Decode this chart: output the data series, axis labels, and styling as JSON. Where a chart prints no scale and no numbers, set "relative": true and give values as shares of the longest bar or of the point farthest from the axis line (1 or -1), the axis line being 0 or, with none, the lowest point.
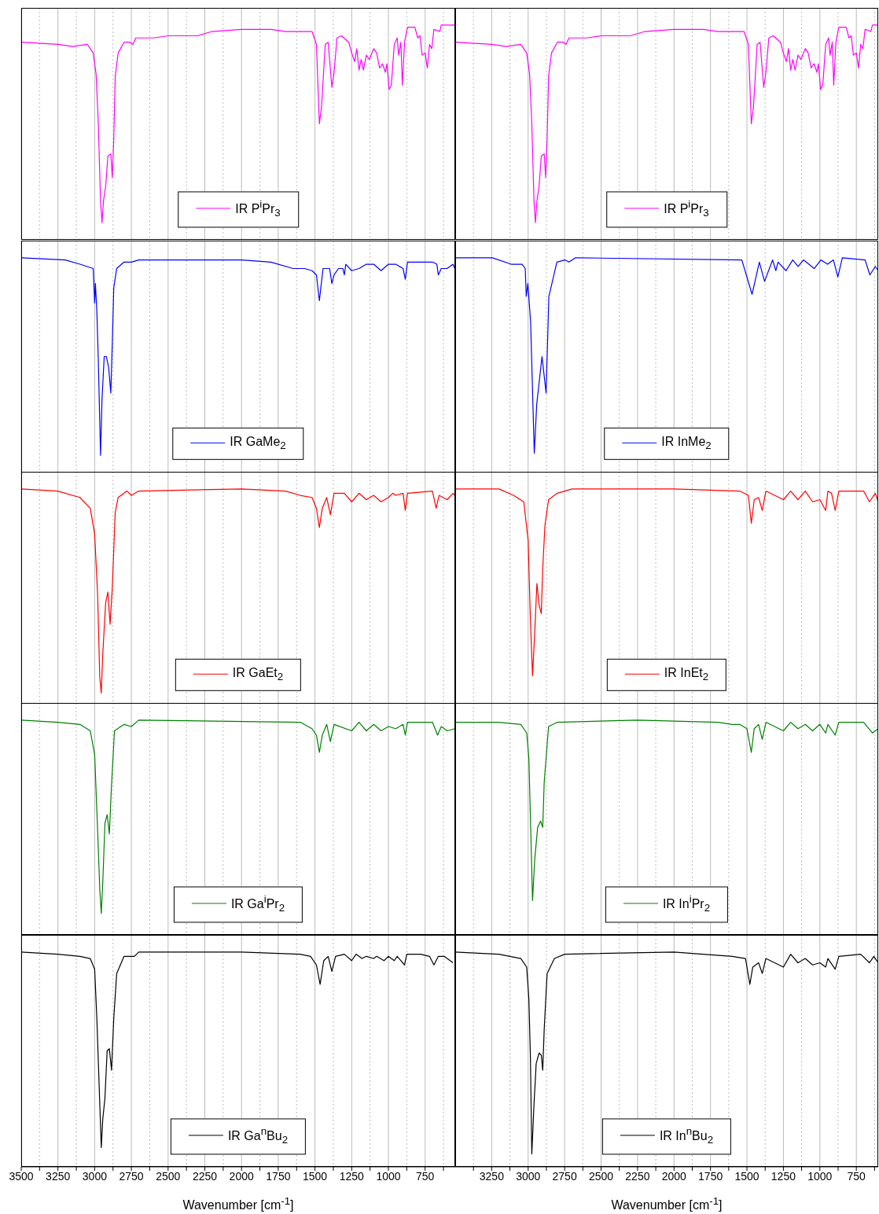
{
  "chart_data": [
    {
      "type": "line",
      "relative": true,
      "grid": "x",
      "legend": "bottom",
      "tick_labels": false,
      "xlim": [
        3500,
        545
      ],
      "xticks": [
        3500,
        {
          "value": 3375,
          "label": null
        },
        3250,
        {
          "value": 3125,
          "label": null
        },
        3000,
        {
          "value": 2875,
          "label": null
        },
        2750,
        {
          "value": 2625,
          "label": null
        },
        2500,
        {
          "value": 2375,
          "label": null
        },
        2250,
        {
          "value": 2125,
          "label": null
        },
        2000,
        {
          "value": 1875,
          "label": null
        },
        1750,
        {
          "value": 1625,
          "label": null
        },
        1500,
        {
          "value": 1375,
          "label": null
        },
        1250,
        {
          "value": 1125,
          "label": null
        },
        1000,
        {
          "value": 875,
          "label": null
        },
        750,
        {
          "value": 625,
          "label": null
        }
      ],
      "x": [
        3500,
        3250,
        3150,
        3050,
        3010,
        2990,
        2975,
        2960,
        2950,
        2940,
        2925,
        2910,
        2890,
        2880,
        2870,
        2860,
        2840,
        2800,
        2760,
        2740,
        2720,
        2600,
        2500,
        2300,
        2200,
        2000,
        1800,
        1700,
        1600,
        1520,
        1490,
        1470,
        1455,
        1430,
        1410,
        1385,
        1370,
        1350,
        1320,
        1270,
        1250,
        1230,
        1215,
        1200,
        1185,
        1170,
        1150,
        1130,
        1100,
        1080,
        1060,
        1040,
        1020,
        1010,
        995,
        980,
        960,
        940,
        930,
        915,
        905,
        890,
        870,
        820,
        800,
        785,
        770,
        750,
        735,
        720,
        705,
        690,
        650,
        640,
        560,
        545
      ],
      "series": [
        {
          "name": "IR P$^{i}$Pr$_{3}$",
          "color": "#ff00ff",
          "values": [
            0.92,
            0.91,
            0.9,
            0.91,
            0.87,
            0.77,
            0.54,
            0.18,
            0.08,
            0.18,
            0.25,
            0.39,
            0.4,
            0.29,
            0.47,
            0.76,
            0.87,
            0.92,
            0.92,
            0.91,
            0.94,
            0.94,
            0.95,
            0.95,
            0.97,
            0.98,
            0.98,
            0.97,
            0.97,
            0.97,
            0.91,
            0.54,
            0.62,
            0.91,
            0.92,
            0.71,
            0.78,
            0.94,
            0.95,
            0.92,
            0.87,
            0.83,
            0.89,
            0.79,
            0.84,
            0.79,
            0.86,
            0.84,
            0.89,
            0.87,
            0.8,
            0.82,
            0.78,
            0.82,
            0.7,
            0.72,
            0.91,
            0.94,
            0.86,
            0.92,
            0.72,
            0.92,
            0.99,
            0.99,
            0.94,
            0.95,
            0.86,
            0.87,
            0.8,
            0.91,
            0.89,
            0.98,
            0.97,
            1.0,
            1.0,
            1.0
          ]
        }
      ]
    },
    {
      "type": "line",
      "relative": true,
      "grid": "x",
      "legend": "bottom",
      "tick_labels": false,
      "xlim": [
        3500,
        600
      ],
      "xticks": [
        {
          "value": 3375,
          "label": null
        },
        3250,
        {
          "value": 3125,
          "label": null
        },
        3000,
        {
          "value": 2875,
          "label": null
        },
        2750,
        {
          "value": 2625,
          "label": null
        },
        2500,
        {
          "value": 2375,
          "label": null
        },
        2250,
        {
          "value": 2125,
          "label": null
        },
        2000,
        {
          "value": 1875,
          "label": null
        },
        1750,
        {
          "value": 1625,
          "label": null
        },
        1500,
        {
          "value": 1375,
          "label": null
        },
        1250,
        {
          "value": 1125,
          "label": null
        },
        1000,
        {
          "value": 875,
          "label": null
        },
        750,
        {
          "value": 625,
          "label": null
        }
      ],
      "x": [
        3500,
        3250,
        3150,
        3050,
        3010,
        2990,
        2975,
        2960,
        2950,
        2940,
        2925,
        2910,
        2890,
        2880,
        2870,
        2860,
        2840,
        2800,
        2760,
        2740,
        2720,
        2600,
        2500,
        2300,
        2200,
        2000,
        1800,
        1700,
        1600,
        1520,
        1490,
        1470,
        1455,
        1430,
        1410,
        1385,
        1370,
        1350,
        1320,
        1270,
        1250,
        1230,
        1215,
        1200,
        1185,
        1170,
        1150,
        1130,
        1100,
        1080,
        1060,
        1040,
        1020,
        1010,
        995,
        980,
        960,
        940,
        930,
        915,
        905,
        890,
        870,
        820,
        800,
        785,
        770,
        750,
        735,
        720,
        705,
        690,
        650,
        640,
        600
      ],
      "series": [
        {
          "name": "IR P$^{i}$Pr$_{3}$",
          "color": "#ff00ff",
          "values": [
            0.92,
            0.91,
            0.9,
            0.91,
            0.87,
            0.77,
            0.54,
            0.18,
            0.08,
            0.18,
            0.25,
            0.39,
            0.4,
            0.29,
            0.47,
            0.76,
            0.87,
            0.92,
            0.92,
            0.91,
            0.94,
            0.94,
            0.95,
            0.95,
            0.97,
            0.98,
            0.98,
            0.97,
            0.97,
            0.97,
            0.91,
            0.54,
            0.62,
            0.91,
            0.92,
            0.71,
            0.78,
            0.94,
            0.95,
            0.92,
            0.87,
            0.83,
            0.89,
            0.79,
            0.84,
            0.79,
            0.86,
            0.84,
            0.89,
            0.87,
            0.8,
            0.82,
            0.78,
            0.82,
            0.7,
            0.72,
            0.91,
            0.94,
            0.86,
            0.92,
            0.72,
            0.92,
            0.99,
            0.99,
            0.94,
            0.95,
            0.86,
            0.87,
            0.8,
            0.91,
            0.89,
            0.98,
            0.97,
            1.0,
            1.0
          ]
        }
      ]
    },
    {
      "type": "line",
      "relative": true,
      "grid": "x",
      "legend": "bottom",
      "tick_labels": false,
      "xlim": [
        3500,
        545
      ],
      "xticks": [
        3500,
        {
          "value": 3375,
          "label": null
        },
        3250,
        {
          "value": 3125,
          "label": null
        },
        3000,
        {
          "value": 2875,
          "label": null
        },
        2750,
        {
          "value": 2625,
          "label": null
        },
        2500,
        {
          "value": 2375,
          "label": null
        },
        2250,
        {
          "value": 2125,
          "label": null
        },
        2000,
        {
          "value": 1875,
          "label": null
        },
        1750,
        {
          "value": 1625,
          "label": null
        },
        1500,
        {
          "value": 1375,
          "label": null
        },
        1250,
        {
          "value": 1125,
          "label": null
        },
        1000,
        {
          "value": 875,
          "label": null
        },
        750,
        {
          "value": 625,
          "label": null
        }
      ],
      "x": [
        3500,
        3200,
        3100,
        3010,
        3000,
        2995,
        2985,
        2975,
        2960,
        2950,
        2935,
        2920,
        2905,
        2890,
        2880,
        2870,
        2850,
        2800,
        2750,
        2700,
        2500,
        2000,
        1800,
        1650,
        1570,
        1520,
        1490,
        1470,
        1460,
        1445,
        1400,
        1385,
        1370,
        1340,
        1310,
        1300,
        1290,
        1250,
        1200,
        1150,
        1100,
        1050,
        1000,
        950,
        900,
        885,
        870,
        750,
        700,
        670,
        660,
        640,
        600,
        560,
        548
      ],
      "series": [
        {
          "name": "IR GaMe$_{2}$",
          "color": "#0000ff",
          "values": [
            1.0,
            0.99,
            0.97,
            0.95,
            0.79,
            0.88,
            0.75,
            0.52,
            0.08,
            0.34,
            0.54,
            0.54,
            0.49,
            0.37,
            0.6,
            0.86,
            0.95,
            0.98,
            0.98,
            0.99,
            0.99,
            0.99,
            0.98,
            0.95,
            0.95,
            0.94,
            0.92,
            0.8,
            0.86,
            0.95,
            0.95,
            0.88,
            0.92,
            0.95,
            0.95,
            0.92,
            0.97,
            0.94,
            0.95,
            0.97,
            0.97,
            0.94,
            0.97,
            0.97,
            0.95,
            0.9,
            0.98,
            0.98,
            0.98,
            0.97,
            0.92,
            0.95,
            0.95,
            0.97,
            0.95
          ]
        }
      ]
    },
    {
      "type": "line",
      "relative": true,
      "grid": "x",
      "legend": "bottom",
      "tick_labels": false,
      "xlim": [
        3500,
        600
      ],
      "xticks": [
        {
          "value": 3375,
          "label": null
        },
        3250,
        {
          "value": 3125,
          "label": null
        },
        3000,
        {
          "value": 2875,
          "label": null
        },
        2750,
        {
          "value": 2625,
          "label": null
        },
        2500,
        {
          "value": 2375,
          "label": null
        },
        2250,
        {
          "value": 2125,
          "label": null
        },
        2000,
        {
          "value": 1875,
          "label": null
        },
        1750,
        {
          "value": 1625,
          "label": null
        },
        1500,
        {
          "value": 1375,
          "label": null
        },
        1250,
        {
          "value": 1125,
          "label": null
        },
        1000,
        {
          "value": 875,
          "label": null
        },
        750,
        {
          "value": 625,
          "label": null
        }
      ],
      "x": [
        3500,
        3245,
        3116,
        3042,
        3020,
        3013,
        3002,
        2983,
        2958,
        2941,
        2905,
        2877,
        2858,
        2803,
        2748,
        2720,
        2675,
        1535,
        1465,
        1415,
        1379,
        1324,
        1302,
        1287,
        1232,
        1186,
        1149,
        1112,
        1039,
        993,
        947,
        907,
        877,
        846,
        690,
        657,
        620,
        600
      ],
      "series": [
        {
          "name": "IR InMe$_{2}$",
          "color": "#0000ff",
          "values": [
            1.0,
            1.0,
            0.97,
            0.97,
            0.95,
            0.82,
            0.88,
            0.7,
            0.09,
            0.32,
            0.54,
            0.37,
            0.82,
            0.98,
            0.99,
            0.98,
            1.0,
            0.99,
            0.83,
            0.98,
            0.89,
            0.99,
            0.94,
            0.98,
            0.94,
            0.99,
            0.96,
            0.99,
            0.95,
            0.99,
            0.97,
            0.99,
            0.91,
            1.0,
            0.99,
            0.92,
            0.96,
            0.94
          ]
        }
      ]
    },
    {
      "type": "line",
      "relative": true,
      "grid": "x",
      "legend": "bottom",
      "tick_labels": false,
      "xlim": [
        3500,
        545
      ],
      "xticks": [
        3500,
        {
          "value": 3375,
          "label": null
        },
        3250,
        {
          "value": 3125,
          "label": null
        },
        3000,
        {
          "value": 2875,
          "label": null
        },
        2750,
        {
          "value": 2625,
          "label": null
        },
        2500,
        {
          "value": 2375,
          "label": null
        },
        2250,
        {
          "value": 2125,
          "label": null
        },
        2000,
        {
          "value": 1875,
          "label": null
        },
        1750,
        {
          "value": 1625,
          "label": null
        },
        1500,
        {
          "value": 1375,
          "label": null
        },
        1250,
        {
          "value": 1125,
          "label": null
        },
        1000,
        {
          "value": 875,
          "label": null
        },
        750,
        {
          "value": 625,
          "label": null
        }
      ],
      "x": [
        3500,
        3250,
        3100,
        3030,
        3000,
        2980,
        2965,
        2955,
        2945,
        2925,
        2910,
        2895,
        2880,
        2860,
        2840,
        2780,
        2750,
        2700,
        2000,
        1700,
        1600,
        1520,
        1490,
        1470,
        1450,
        1420,
        1395,
        1370,
        1300,
        1250,
        1200,
        1150,
        1100,
        1050,
        1000,
        970,
        950,
        900,
        885,
        870,
        700,
        675,
        655,
        600,
        560,
        548
      ],
      "series": [
        {
          "name": "IR GaEt$_{2}$",
          "color": "#ff0000",
          "values": [
            1.0,
            0.99,
            0.96,
            0.91,
            0.79,
            0.51,
            0.12,
            0.05,
            0.23,
            0.47,
            0.52,
            0.37,
            0.54,
            0.89,
            0.96,
            0.99,
            0.97,
            0.99,
            1.0,
            0.99,
            0.97,
            0.96,
            0.91,
            0.82,
            0.91,
            0.96,
            0.88,
            0.98,
            0.98,
            0.94,
            0.98,
            0.95,
            0.97,
            0.94,
            0.96,
            0.98,
            0.97,
            0.98,
            0.9,
            0.98,
            0.99,
            0.91,
            0.97,
            0.95,
            0.98,
            0.97
          ]
        }
      ]
    },
    {
      "type": "line",
      "relative": true,
      "grid": "x",
      "legend": "bottom",
      "tick_labels": false,
      "xlim": [
        3500,
        600
      ],
      "xticks": [
        {
          "value": 3375,
          "label": null
        },
        3250,
        {
          "value": 3125,
          "label": null
        },
        3000,
        {
          "value": 2875,
          "label": null
        },
        2750,
        {
          "value": 2625,
          "label": null
        },
        2500,
        {
          "value": 2375,
          "label": null
        },
        2250,
        {
          "value": 2125,
          "label": null
        },
        2000,
        {
          "value": 1875,
          "label": null
        },
        1750,
        {
          "value": 1625,
          "label": null
        },
        1500,
        {
          "value": 1375,
          "label": null
        },
        1250,
        {
          "value": 1125,
          "label": null
        },
        1000,
        {
          "value": 875,
          "label": null
        },
        750,
        {
          "value": 625,
          "label": null
        }
      ],
      "x": [
        3500,
        3200,
        3100,
        3030,
        3000,
        2985,
        2970,
        2955,
        2940,
        2925,
        2910,
        2900,
        2885,
        2860,
        2800,
        2700,
        2000,
        1550,
        1490,
        1470,
        1450,
        1420,
        1395,
        1370,
        1250,
        1200,
        1150,
        1100,
        1050,
        1000,
        960,
        945,
        920,
        895,
        870,
        700,
        660,
        620,
        600
      ],
      "series": [
        {
          "name": "IR InEt$_{2}$",
          "color": "#ff0000",
          "values": [
            1.0,
            1.0,
            0.97,
            0.94,
            0.76,
            0.4,
            0.13,
            0.33,
            0.56,
            0.46,
            0.42,
            0.63,
            0.83,
            0.95,
            0.98,
            1.0,
            1.0,
            0.99,
            0.97,
            0.84,
            0.95,
            0.96,
            0.9,
            0.99,
            0.95,
            0.99,
            0.95,
            0.99,
            0.94,
            0.95,
            0.9,
            0.99,
            0.98,
            0.9,
            0.99,
            0.99,
            0.94,
            0.98,
            0.94
          ]
        }
      ]
    },
    {
      "type": "line",
      "relative": true,
      "grid": "x",
      "legend": "bottom",
      "tick_labels": false,
      "xlim": [
        3500,
        545
      ],
      "xticks": [
        3500,
        {
          "value": 3375,
          "label": null
        },
        3250,
        {
          "value": 3125,
          "label": null
        },
        3000,
        {
          "value": 2875,
          "label": null
        },
        2750,
        {
          "value": 2625,
          "label": null
        },
        2500,
        {
          "value": 2375,
          "label": null
        },
        2250,
        {
          "value": 2125,
          "label": null
        },
        2000,
        {
          "value": 1875,
          "label": null
        },
        1750,
        {
          "value": 1625,
          "label": null
        },
        1500,
        {
          "value": 1375,
          "label": null
        },
        1250,
        {
          "value": 1125,
          "label": null
        },
        1000,
        {
          "value": 875,
          "label": null
        },
        750,
        {
          "value": 625,
          "label": null
        }
      ],
      "x": [
        3500,
        3250,
        3100,
        3030,
        3000,
        2980,
        2965,
        2955,
        2945,
        2930,
        2915,
        2900,
        2885,
        2865,
        2800,
        2750,
        2700,
        1600,
        1520,
        1490,
        1470,
        1450,
        1420,
        1395,
        1370,
        1250,
        1200,
        1150,
        1100,
        1050,
        1000,
        950,
        900,
        885,
        870,
        700,
        665,
        640,
        600,
        548
      ],
      "series": [
        {
          "name": "IR Ga$^{i}$Pr$_{2}$",
          "color": "#008000",
          "values": [
            1.0,
            0.99,
            0.98,
            0.95,
            0.84,
            0.49,
            0.21,
            0.1,
            0.24,
            0.52,
            0.56,
            0.47,
            0.7,
            0.95,
            0.98,
            0.97,
            1.0,
            0.99,
            0.96,
            0.93,
            0.85,
            0.93,
            0.98,
            0.9,
            0.98,
            0.95,
            0.99,
            0.95,
            0.98,
            0.95,
            0.97,
            0.96,
            0.98,
            0.93,
            0.99,
            0.99,
            0.93,
            0.97,
            0.95,
            0.96
          ]
        }
      ]
    },
    {
      "type": "line",
      "relative": true,
      "grid": "x",
      "legend": "bottom",
      "tick_labels": false,
      "xlim": [
        3500,
        600
      ],
      "xticks": [
        {
          "value": 3375,
          "label": null
        },
        3250,
        {
          "value": 3125,
          "label": null
        },
        3000,
        {
          "value": 2875,
          "label": null
        },
        2750,
        {
          "value": 2625,
          "label": null
        },
        2500,
        {
          "value": 2375,
          "label": null
        },
        2250,
        {
          "value": 2125,
          "label": null
        },
        2000,
        {
          "value": 1875,
          "label": null
        },
        1750,
        {
          "value": 1625,
          "label": null
        },
        1500,
        {
          "value": 1375,
          "label": null
        },
        1250,
        {
          "value": 1125,
          "label": null
        },
        1000,
        {
          "value": 875,
          "label": null
        },
        750,
        {
          "value": 625,
          "label": null
        }
      ],
      "x": [
        3500,
        3200,
        3050,
        3010,
        2995,
        2980,
        2970,
        2955,
        2935,
        2915,
        2900,
        2890,
        2860,
        2800,
        2250,
        1700,
        1600,
        1550,
        1500,
        1470,
        1450,
        1420,
        1395,
        1370,
        1250,
        1200,
        1150,
        1100,
        1050,
        1000,
        960,
        945,
        895,
        870,
        700,
        640,
        600
      ],
      "series": [
        {
          "name": "IR In$^{i}$Pr$_{2}$",
          "color": "#008000",
          "values": [
            0.99,
            0.99,
            0.98,
            0.94,
            0.82,
            0.43,
            0.16,
            0.35,
            0.5,
            0.53,
            0.5,
            0.71,
            0.97,
            0.99,
            1.0,
            0.99,
            0.98,
            0.98,
            0.96,
            0.85,
            0.96,
            0.98,
            0.91,
            0.99,
            0.95,
            0.99,
            0.96,
            0.98,
            0.95,
            0.98,
            0.94,
            0.98,
            0.93,
            0.99,
            0.99,
            0.94,
            0.96
          ]
        }
      ]
    },
    {
      "type": "line",
      "relative": true,
      "grid": "x",
      "legend": "bottom",
      "tick_labels": "x",
      "xlabel": "Wavenumber [cm$^{-1}$]",
      "xlim": [
        3500,
        545
      ],
      "xticks": [
        3500,
        {
          "value": 3375,
          "label": null
        },
        3250,
        {
          "value": 3125,
          "label": null
        },
        3000,
        {
          "value": 2875,
          "label": null
        },
        2750,
        {
          "value": 2625,
          "label": null
        },
        2500,
        {
          "value": 2375,
          "label": null
        },
        2250,
        {
          "value": 2125,
          "label": null
        },
        2000,
        {
          "value": 1875,
          "label": null
        },
        1750,
        {
          "value": 1625,
          "label": null
        },
        1500,
        {
          "value": 1375,
          "label": null
        },
        1250,
        {
          "value": 1125,
          "label": null
        },
        1000,
        {
          "value": 875,
          "label": null
        },
        750,
        {
          "value": 625,
          "label": null
        }
      ],
      "x": [
        3500,
        3250,
        3100,
        3030,
        3000,
        2985,
        2965,
        2955,
        2945,
        2930,
        2915,
        2900,
        2885,
        2870,
        2850,
        2800,
        2750,
        2730,
        2700,
        2000,
        1600,
        1530,
        1490,
        1465,
        1440,
        1410,
        1385,
        1360,
        1300,
        1250,
        1220,
        1180,
        1150,
        1100,
        1080,
        1030,
        1000,
        960,
        940,
        890,
        875,
        780,
        720,
        690,
        660,
        620,
        560
      ],
      "series": [
        {
          "name": "IR Ga$^{n}$Bu$_{2}$",
          "color": "#000000",
          "values": [
            1.0,
            0.99,
            0.98,
            0.97,
            0.92,
            0.69,
            0.29,
            0.09,
            0.22,
            0.32,
            0.54,
            0.55,
            0.45,
            0.69,
            0.9,
            0.98,
            0.98,
            0.98,
            1.0,
            1.0,
            0.99,
            0.98,
            0.94,
            0.85,
            0.96,
            0.98,
            0.91,
            0.98,
            0.99,
            0.96,
            0.99,
            0.97,
            0.98,
            0.97,
            0.98,
            0.96,
            0.98,
            0.96,
            0.98,
            0.94,
            0.99,
            0.99,
            0.98,
            0.94,
            0.98,
            0.98,
            0.95
          ]
        }
      ]
    },
    {
      "type": "line",
      "relative": true,
      "grid": "x",
      "legend": "bottom",
      "tick_labels": "x",
      "xlabel": "Wavenumber [cm$^{-1}$]",
      "xlim": [
        3500,
        600
      ],
      "xticks": [
        {
          "value": 3375,
          "label": null
        },
        3250,
        {
          "value": 3125,
          "label": null
        },
        3000,
        {
          "value": 2875,
          "label": null
        },
        2750,
        {
          "value": 2625,
          "label": null
        },
        2500,
        {
          "value": 2375,
          "label": null
        },
        2250,
        {
          "value": 2125,
          "label": null
        },
        2000,
        {
          "value": 1875,
          "label": null
        },
        1750,
        {
          "value": 1625,
          "label": null
        },
        1500,
        {
          "value": 1375,
          "label": null
        },
        1250,
        {
          "value": 1125,
          "label": null
        },
        1000,
        {
          "value": 875,
          "label": null
        },
        750,
        {
          "value": 625,
          "label": null
        }
      ],
      "x": [
        3500,
        3200,
        3050,
        3010,
        2995,
        2985,
        2975,
        2960,
        2945,
        2925,
        2910,
        2900,
        2890,
        2870,
        2820,
        2750,
        2000,
        1600,
        1510,
        1480,
        1460,
        1420,
        1395,
        1370,
        1250,
        1200,
        1150,
        1100,
        1050,
        1000,
        960,
        945,
        895,
        870,
        720,
        660,
        630,
        600
      ],
      "series": [
        {
          "name": "IR In$^{n}$Bu$_{2}$",
          "color": "#000000",
          "values": [
            1.0,
            0.99,
            0.97,
            0.93,
            0.78,
            0.53,
            0.06,
            0.29,
            0.48,
            0.53,
            0.52,
            0.45,
            0.64,
            0.9,
            0.97,
            0.99,
            1.0,
            0.98,
            0.97,
            0.85,
            0.93,
            0.95,
            0.9,
            0.97,
            0.93,
            0.99,
            0.95,
            0.97,
            0.94,
            0.95,
            0.93,
            0.97,
            0.92,
            0.98,
            0.99,
            0.95,
            0.98,
            0.95
          ]
        }
      ]
    }
  ]
}
